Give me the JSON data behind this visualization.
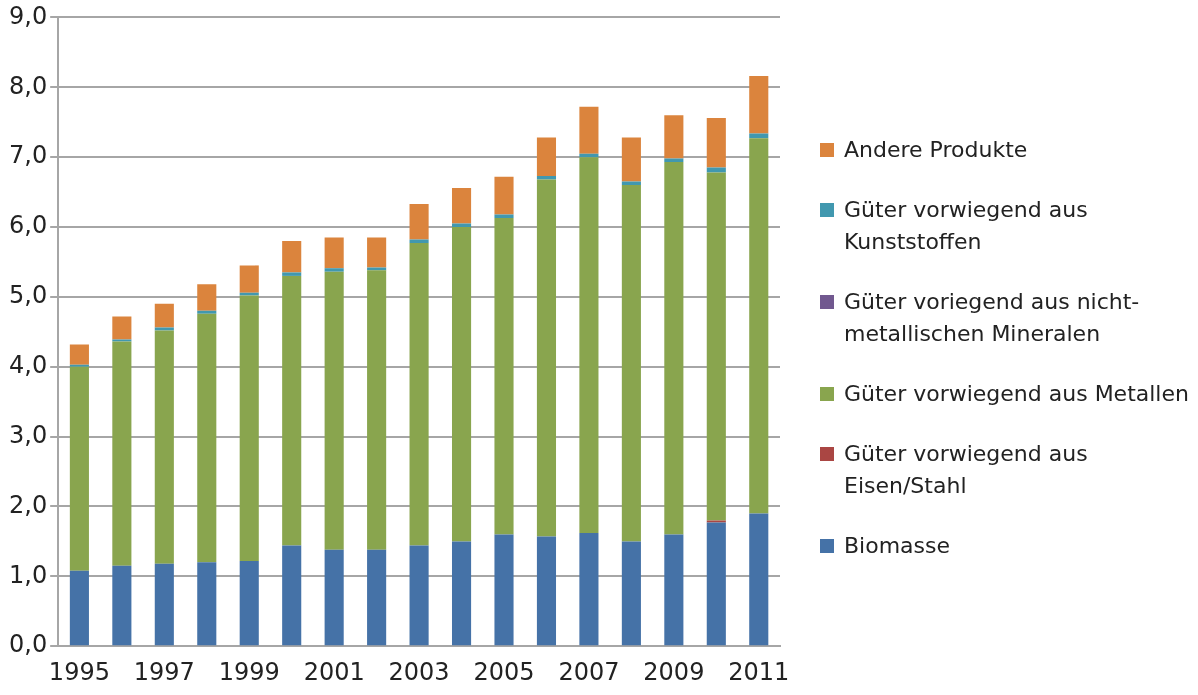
{
  "chart_data": {
    "type": "bar",
    "stacked": true,
    "categories": [
      "1995",
      null,
      "1997",
      null,
      "1999",
      null,
      "2001",
      null,
      "2003",
      null,
      "2005",
      null,
      "2007",
      null,
      "2009",
      null,
      "2011"
    ],
    "series": [
      {
        "name": "Biomasse",
        "color": "#4572a7",
        "values": [
          1.08,
          1.15,
          1.18,
          1.2,
          1.22,
          1.44,
          1.38,
          1.38,
          1.44,
          1.5,
          1.6,
          1.57,
          1.62,
          1.5,
          1.6,
          1.77,
          1.9
        ]
      },
      {
        "name": "Güter vorwiegend aus Eisen/Stahl",
        "color": "#aa4643",
        "values": [
          0,
          0,
          0,
          0,
          0,
          0,
          0,
          0,
          0,
          0,
          0,
          0,
          0,
          0,
          0,
          0.03,
          0
        ]
      },
      {
        "name": "Güter vorwiegend aus Metallen",
        "color": "#89a54e",
        "values": [
          2.92,
          3.21,
          3.34,
          3.56,
          3.8,
          3.86,
          3.98,
          4.0,
          4.33,
          4.5,
          4.53,
          5.11,
          5.38,
          5.1,
          5.33,
          4.98,
          5.37
        ]
      },
      {
        "name": "Güter voriegend aus nicht-metallischen Mineralen",
        "color": "#71588f",
        "values": [
          0,
          0,
          0,
          0,
          0,
          0,
          0,
          0,
          0,
          0,
          0,
          0,
          0,
          0,
          0,
          0,
          0
        ]
      },
      {
        "name": "Güter vorwiegend aus Kunststoffen",
        "color": "#4198af",
        "values": [
          0.03,
          0.03,
          0.04,
          0.04,
          0.04,
          0.05,
          0.05,
          0.04,
          0.05,
          0.05,
          0.05,
          0.05,
          0.05,
          0.05,
          0.05,
          0.07,
          0.07
        ]
      },
      {
        "name": "Andere Produkte",
        "color": "#db843d",
        "values": [
          0.29,
          0.33,
          0.34,
          0.38,
          0.39,
          0.45,
          0.44,
          0.43,
          0.51,
          0.51,
          0.54,
          0.55,
          0.67,
          0.63,
          0.62,
          0.71,
          0.82
        ]
      }
    ],
    "ylim": [
      0,
      9
    ],
    "yticks": [
      {
        "value": 0,
        "label": "0,0"
      },
      {
        "value": 1,
        "label": "1,0"
      },
      {
        "value": 2,
        "label": "2,0"
      },
      {
        "value": 3,
        "label": "3,0"
      },
      {
        "value": 4,
        "label": "4,0"
      },
      {
        "value": 5,
        "label": "5,0"
      },
      {
        "value": 6,
        "label": "6,0"
      },
      {
        "value": 7,
        "label": "7,0"
      },
      {
        "value": 8,
        "label": "8,0"
      },
      {
        "value": 9,
        "label": "9,0"
      }
    ],
    "grid": "y",
    "legend": "right"
  }
}
